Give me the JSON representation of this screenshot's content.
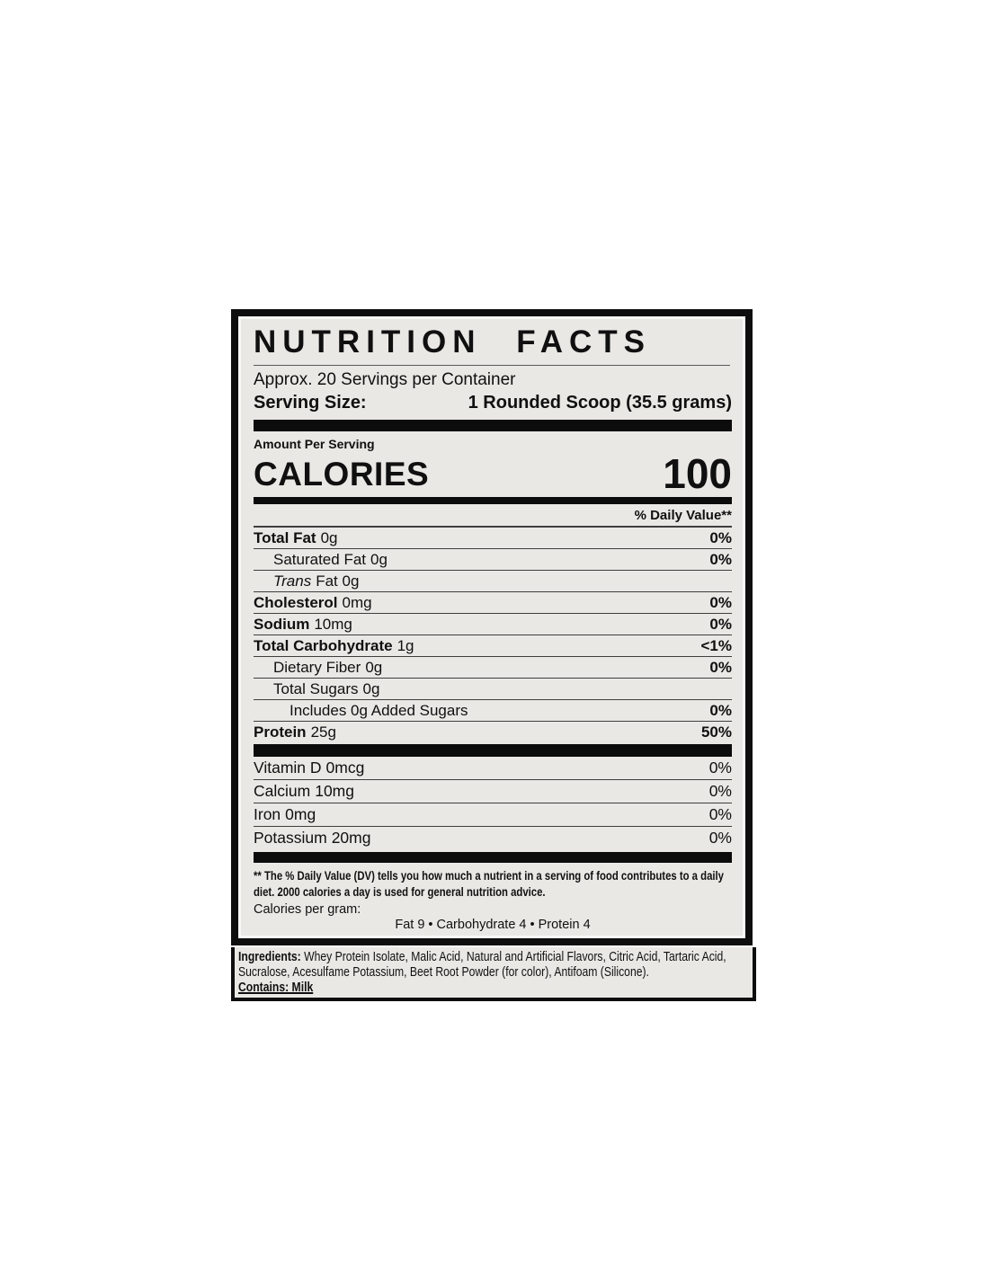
{
  "label": {
    "title": "NUTRITION FACTS",
    "servings_per_container": "Approx. 20 Servings per Container",
    "serving_size_label": "Serving Size:",
    "serving_size_value": "1 Rounded Scoop (35.5 grams)",
    "amount_per_serving": "Amount Per Serving",
    "calories_label": "CALORIES",
    "calories_value": "100",
    "daily_value_header": "% Daily Value**",
    "colors": {
      "panel_bg": "#e9e8e5",
      "border_black": "#0e0e0e",
      "text": "#101010"
    },
    "nutrients": [
      {
        "name": "Total Fat",
        "amount": "0g",
        "percent": "0%"
      },
      {
        "name": "Saturated Fat",
        "amount": "0g",
        "percent": "0%"
      },
      {
        "name": "Trans",
        "rest": "Fat 0g",
        "percent": ""
      },
      {
        "name": "Cholesterol",
        "amount": "0mg",
        "percent": "0%"
      },
      {
        "name": "Sodium",
        "amount": "10mg",
        "percent": "0%"
      },
      {
        "name": "Total Carbohydrate",
        "amount": "1g",
        "percent": "<1%"
      },
      {
        "name": "Dietary Fiber",
        "amount": "0g",
        "percent": "0%"
      },
      {
        "name": "Total Sugars",
        "amount": "0g",
        "percent": ""
      },
      {
        "name": "Includes 0g Added Sugars",
        "amount": "",
        "percent": "0%"
      },
      {
        "name": "Protein",
        "amount": "25g",
        "percent": "50%"
      }
    ],
    "micronutrients": [
      {
        "name": "Vitamin D",
        "amount": "0mcg",
        "percent": "0%"
      },
      {
        "name": "Calcium",
        "amount": "10mg",
        "percent": "0%"
      },
      {
        "name": "Iron",
        "amount": "0mg",
        "percent": "0%"
      },
      {
        "name": "Potassium",
        "amount": "20mg",
        "percent": "0%"
      }
    ],
    "footnote": "** The % Daily Value (DV) tells you how much a nutrient in a serving of food contributes to a daily diet. 2000 calories a day is used for general nutrition advice.",
    "calories_per_gram_label": "Calories per gram:",
    "calories_per_gram_value": "Fat 9 • Carbohydrate 4 • Protein 4",
    "ingredients_label": "Ingredients:",
    "ingredients_text": " Whey Protein Isolate, Malic Acid, Natural and Artificial Flavors, Citric Acid, Tartaric Acid, Sucralose, Acesulfame Potassium, Beet Root Powder (for color), Antifoam (Silicone).",
    "contains": "Contains: Milk"
  }
}
